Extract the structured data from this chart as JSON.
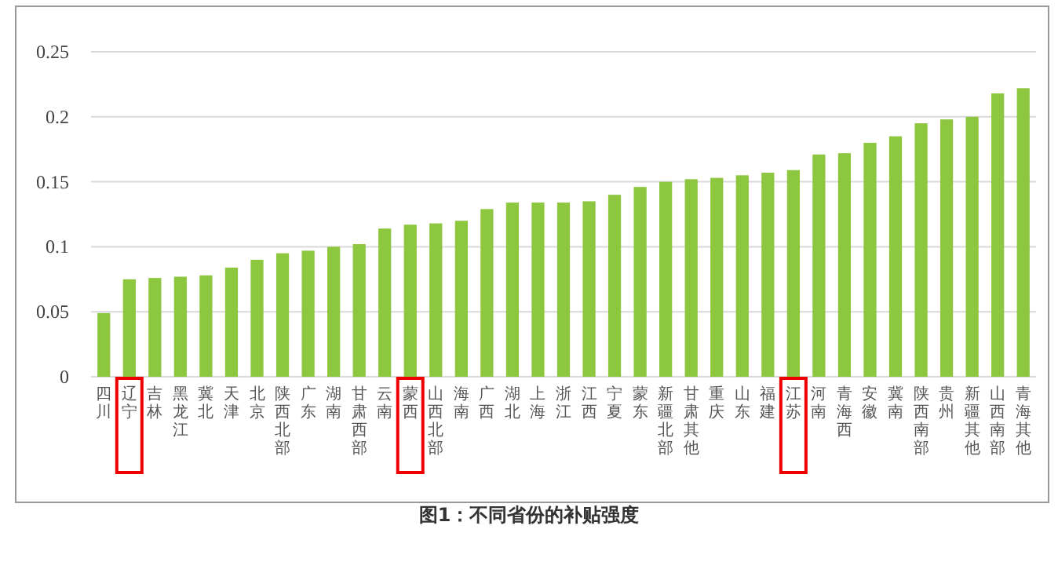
{
  "chart_data": {
    "type": "bar",
    "title": "图1：不同省份的补贴强度",
    "categories": [
      "四川",
      "辽宁",
      "吉林",
      "黑龙江",
      "冀北",
      "天津",
      "北京",
      "陕西北部",
      "广东",
      "湖南",
      "甘肃西部",
      "云南",
      "蒙西",
      "山西北部",
      "海南",
      "广西",
      "湖北",
      "上海",
      "浙江",
      "江西",
      "宁夏",
      "蒙东",
      "新疆北部",
      "甘肃其他",
      "重庆",
      "山东",
      "福建",
      "江苏",
      "河南",
      "青海西",
      "安徽",
      "冀南",
      "陕西南部",
      "贵州",
      "新疆其他",
      "山西南部",
      "青海其他"
    ],
    "values": [
      0.049,
      0.075,
      0.076,
      0.077,
      0.078,
      0.084,
      0.09,
      0.095,
      0.097,
      0.1,
      0.102,
      0.114,
      0.117,
      0.118,
      0.12,
      0.129,
      0.134,
      0.134,
      0.134,
      0.135,
      0.14,
      0.146,
      0.15,
      0.152,
      0.153,
      0.155,
      0.157,
      0.159,
      0.171,
      0.172,
      0.18,
      0.185,
      0.195,
      0.198,
      0.2,
      0.218,
      0.222
    ],
    "color": "#8dc63f",
    "ylim": [
      0,
      0.25
    ],
    "yticks": [
      0,
      0.05,
      0.1,
      0.15,
      0.2,
      0.25
    ],
    "grid": "y"
  }
}
